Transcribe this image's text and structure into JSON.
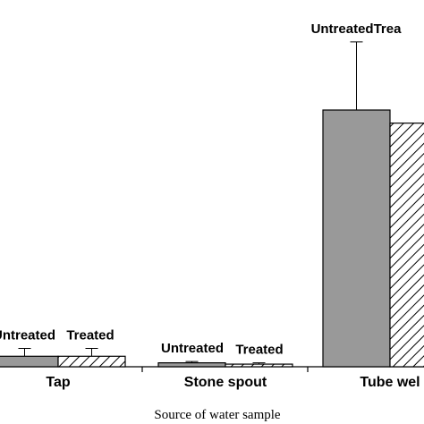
{
  "chart_data": {
    "type": "bar",
    "title": "",
    "xlabel": "Source of water sample",
    "ylabel": "",
    "categories": [
      "Tap",
      "Stone spout",
      "Tube wel"
    ],
    "series": [
      {
        "name": "Untreated",
        "values": [
          4,
          1.5,
          98
        ],
        "errors": [
          3,
          0.5,
          26
        ],
        "labels": [
          "Untreated",
          "Untreated",
          "UntreatedTrea"
        ],
        "fill": "#999999",
        "pattern": "solid"
      },
      {
        "name": "Treated",
        "values": [
          4,
          1,
          93
        ],
        "errors": [
          3,
          0.5,
          0
        ],
        "labels": [
          "Treated",
          "Treated",
          ""
        ],
        "fill": "#ffffff",
        "pattern": "hatch"
      }
    ],
    "ylim": [
      0,
      140
    ],
    "grid": false,
    "legend": "none"
  }
}
